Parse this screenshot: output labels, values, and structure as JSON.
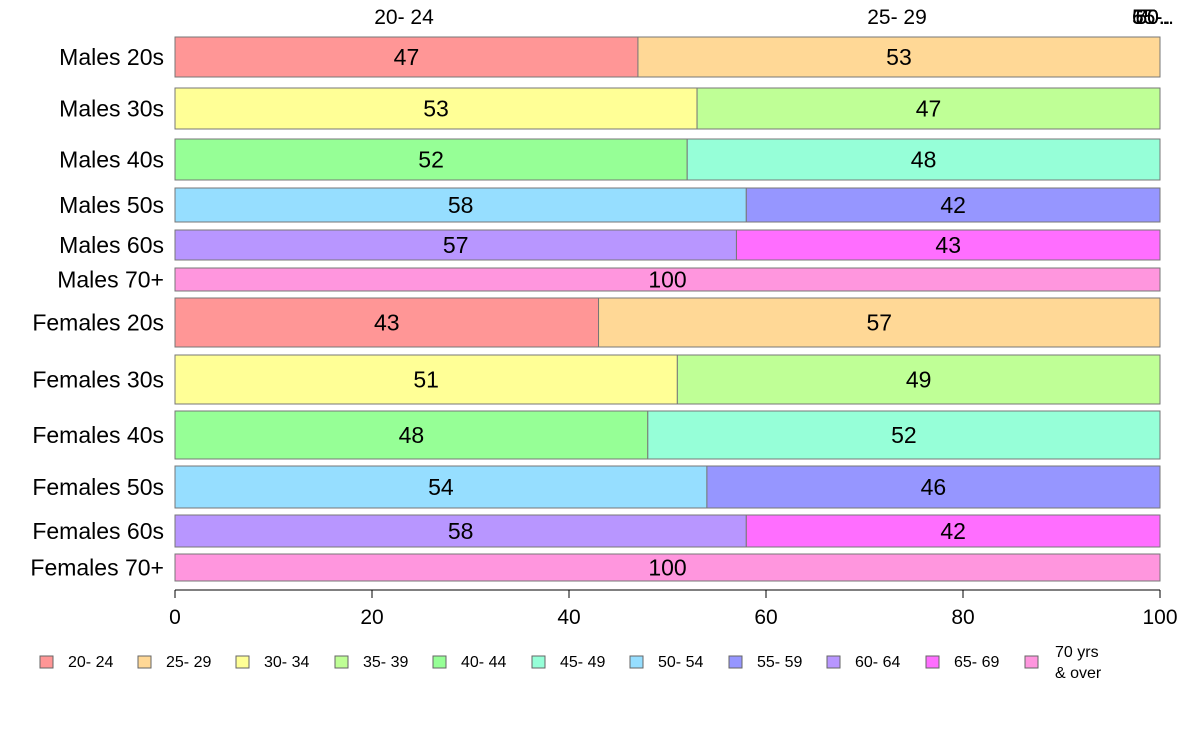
{
  "chart_data": {
    "type": "bar",
    "orientation": "horizontal",
    "stacked": true,
    "xlim": [
      0,
      100
    ],
    "x_ticks": [
      "0",
      "20",
      "40",
      "60",
      "80",
      "100"
    ],
    "top_labels": [
      "20- 24",
      "25- 29",
      "55-..",
      "65-..",
      "50..",
      "60..",
      "70.."
    ],
    "categories": [
      "Males 20s",
      "Males 30s",
      "Males 40s",
      "Males 50s",
      "Males 60s",
      "Males 70+",
      "Females 20s",
      "Females 30s",
      "Females 40s",
      "Females 50s",
      "Females 60s",
      "Females 70+"
    ],
    "rows": [
      {
        "label": "Males 20s",
        "segments": [
          {
            "series": "20- 24",
            "value": 47
          },
          {
            "series": "25- 29",
            "value": 53
          }
        ]
      },
      {
        "label": "Males 30s",
        "segments": [
          {
            "series": "30- 34",
            "value": 53
          },
          {
            "series": "35- 39",
            "value": 47
          }
        ]
      },
      {
        "label": "Males 40s",
        "segments": [
          {
            "series": "40- 44",
            "value": 52
          },
          {
            "series": "45- 49",
            "value": 48
          }
        ]
      },
      {
        "label": "Males 50s",
        "segments": [
          {
            "series": "50- 54",
            "value": 58
          },
          {
            "series": "55- 59",
            "value": 42
          }
        ]
      },
      {
        "label": "Males 60s",
        "segments": [
          {
            "series": "60- 64",
            "value": 57
          },
          {
            "series": "65- 69",
            "value": 43
          }
        ]
      },
      {
        "label": "Males 70+",
        "segments": [
          {
            "series": "70 yrs & over",
            "value": 100
          }
        ]
      },
      {
        "label": "Females 20s",
        "segments": [
          {
            "series": "20- 24",
            "value": 43
          },
          {
            "series": "25- 29",
            "value": 57
          }
        ]
      },
      {
        "label": "Females 30s",
        "segments": [
          {
            "series": "30- 34",
            "value": 51
          },
          {
            "series": "35- 39",
            "value": 49
          }
        ]
      },
      {
        "label": "Females 40s",
        "segments": [
          {
            "series": "40- 44",
            "value": 48
          },
          {
            "series": "45- 49",
            "value": 52
          }
        ]
      },
      {
        "label": "Females 50s",
        "segments": [
          {
            "series": "50- 54",
            "value": 54
          },
          {
            "series": "55- 59",
            "value": 46
          }
        ]
      },
      {
        "label": "Females 60s",
        "segments": [
          {
            "series": "60- 64",
            "value": 58
          },
          {
            "series": "65- 69",
            "value": 42
          }
        ]
      },
      {
        "label": "Females 70+",
        "segments": [
          {
            "series": "70 yrs & over",
            "value": 100
          }
        ]
      }
    ],
    "legend": {
      "placement": "bottom",
      "entries": [
        {
          "name": "20- 24",
          "color": "#FF9696"
        },
        {
          "name": "25- 29",
          "color": "#FFD896"
        },
        {
          "name": "30- 34",
          "color": "#FFFF96"
        },
        {
          "name": "35- 39",
          "color": "#BFFF96"
        },
        {
          "name": "40- 44",
          "color": "#96FF96"
        },
        {
          "name": "45- 49",
          "color": "#96FFD8"
        },
        {
          "name": "50- 54",
          "color": "#96DEFF"
        },
        {
          "name": "55- 59",
          "color": "#9696FF"
        },
        {
          "name": "60- 64",
          "color": "#B896FF"
        },
        {
          "name": "65- 69",
          "color": "#FF6EFF"
        },
        {
          "name": "70 yrs\n& over",
          "color": "#FF96DE"
        }
      ]
    },
    "grid": false
  }
}
